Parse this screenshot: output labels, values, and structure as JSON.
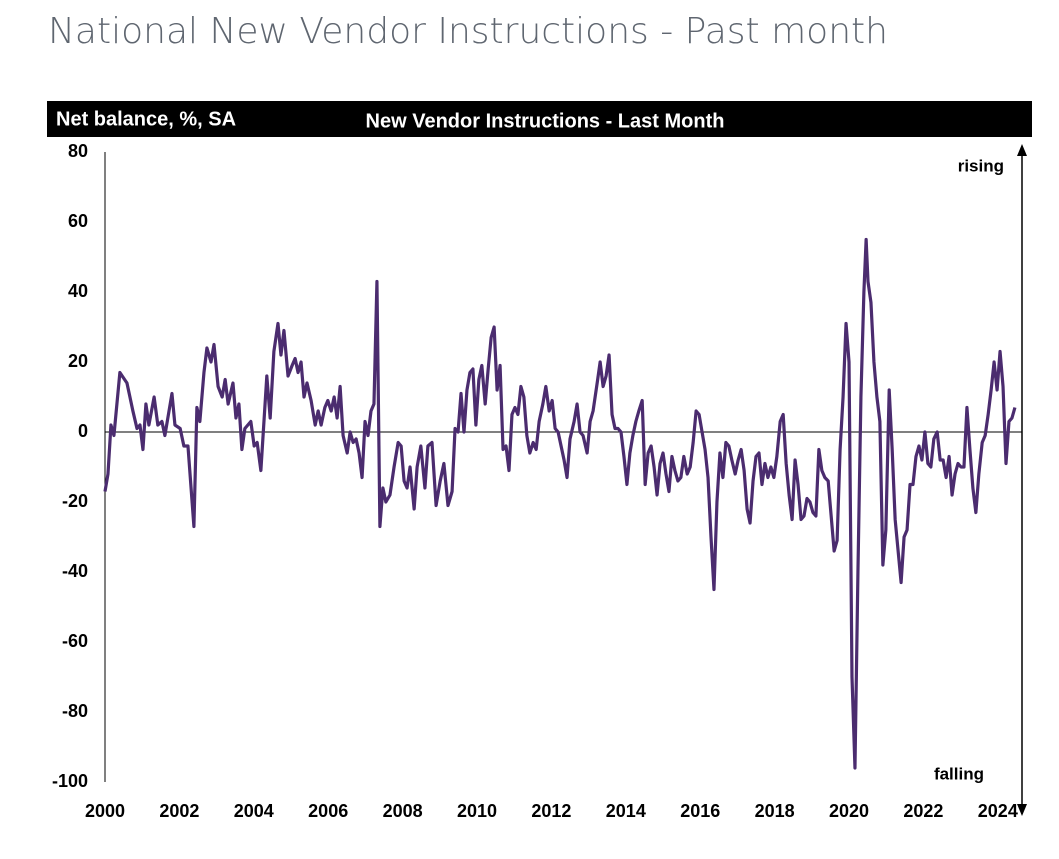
{
  "chart_data": {
    "type": "line",
    "title": "National New Vendor Instructions - Past month",
    "subtitle": "New Vendor Instructions - Last Month",
    "y_label": "Net balance, %, SA",
    "annotations": [
      "rising",
      "falling"
    ],
    "color": "#4b2c6f",
    "xlim": [
      2000,
      2024.65
    ],
    "xticks": [
      2000,
      2002,
      2004,
      2006,
      2008,
      2010,
      2012,
      2014,
      2016,
      2018,
      2020,
      2022,
      2024
    ],
    "ylim": [
      -100,
      80
    ],
    "yticks": [
      -100,
      -80,
      -60,
      -40,
      -20,
      0,
      20,
      40,
      60,
      80
    ],
    "x": [
      2000.0,
      2000.08,
      2000.16,
      2000.24,
      2000.4,
      2000.59,
      2000.75,
      2000.86,
      2000.94,
      2001.02,
      2001.1,
      2001.18,
      2001.32,
      2001.42,
      2001.53,
      2001.61,
      2001.8,
      2001.88,
      2002.02,
      2002.12,
      2002.23,
      2002.39,
      2002.47,
      2002.55,
      2002.66,
      2002.74,
      2002.85,
      2002.93,
      2003.04,
      2003.15,
      2003.23,
      2003.31,
      2003.44,
      2003.52,
      2003.6,
      2003.68,
      2003.76,
      2003.92,
      2004.01,
      2004.09,
      2004.19,
      2004.35,
      2004.44,
      2004.54,
      2004.65,
      2004.73,
      2004.81,
      2004.92,
      2005.03,
      2005.11,
      2005.19,
      2005.27,
      2005.35,
      2005.43,
      2005.54,
      2005.65,
      2005.73,
      2005.81,
      2005.91,
      2005.99,
      2006.08,
      2006.16,
      2006.24,
      2006.32,
      2006.4,
      2006.51,
      2006.59,
      2006.67,
      2006.75,
      2006.83,
      2006.91,
      2006.99,
      2007.07,
      2007.15,
      2007.23,
      2007.31,
      2007.39,
      2007.47,
      2007.55,
      2007.66,
      2007.77,
      2007.88,
      2007.96,
      2008.04,
      2008.12,
      2008.2,
      2008.31,
      2008.39,
      2008.49,
      2008.6,
      2008.68,
      2008.79,
      2008.9,
      2009.01,
      2009.11,
      2009.22,
      2009.33,
      2009.41,
      2009.49,
      2009.57,
      2009.65,
      2009.73,
      2009.81,
      2009.89,
      2009.97,
      2010.05,
      2010.13,
      2010.22,
      2010.3,
      2010.38,
      2010.46,
      2010.54,
      2010.62,
      2010.7,
      2010.78,
      2010.86,
      2010.94,
      2011.02,
      2011.1,
      2011.18,
      2011.26,
      2011.34,
      2011.42,
      2011.51,
      2011.59,
      2011.67,
      2011.77,
      2011.85,
      2011.94,
      2012.02,
      2012.1,
      2012.18,
      2012.26,
      2012.34,
      2012.42,
      2012.5,
      2012.61,
      2012.69,
      2012.77,
      2012.85,
      2012.96,
      2013.04,
      2013.12,
      2013.23,
      2013.31,
      2013.39,
      2013.47,
      2013.55,
      2013.63,
      2013.71,
      2013.79,
      2013.87,
      2013.95,
      2014.03,
      2014.11,
      2014.19,
      2014.27,
      2014.35,
      2014.44,
      2014.52,
      2014.6,
      2014.68,
      2014.76,
      2014.84,
      2014.92,
      2015.0,
      2015.08,
      2015.16,
      2015.24,
      2015.32,
      2015.4,
      2015.48,
      2015.56,
      2015.65,
      2015.73,
      2015.81,
      2015.89,
      2015.97,
      2016.05,
      2016.13,
      2016.21,
      2016.29,
      2016.37,
      2016.45,
      2016.53,
      2016.61,
      2016.69,
      2016.77,
      2016.85,
      2016.94,
      2017.02,
      2017.1,
      2017.18,
      2017.26,
      2017.34,
      2017.42,
      2017.5,
      2017.58,
      2017.66,
      2017.74,
      2017.82,
      2017.9,
      2017.98,
      2018.06,
      2018.15,
      2018.23,
      2018.31,
      2018.39,
      2018.47,
      2018.55,
      2018.63,
      2018.71,
      2018.79,
      2018.87,
      2018.95,
      2019.03,
      2019.11,
      2019.19,
      2019.27,
      2019.35,
      2019.44,
      2019.52,
      2019.6,
      2019.68,
      2019.76,
      2019.84,
      2019.92,
      2020.0,
      2020.08,
      2020.16,
      2020.24,
      2020.32,
      2020.4,
      2020.46,
      2020.51,
      2020.59,
      2020.67,
      2020.75,
      2020.83,
      2020.91,
      2020.99,
      2021.08,
      2021.16,
      2021.24,
      2021.32,
      2021.4,
      2021.48,
      2021.56,
      2021.64,
      2021.72,
      2021.8,
      2021.88,
      2021.96,
      2022.04,
      2022.12,
      2022.2,
      2022.28,
      2022.37,
      2022.45,
      2022.53,
      2022.61,
      2022.69,
      2022.77,
      2022.85,
      2022.93,
      2023.01,
      2023.09,
      2023.17,
      2023.25,
      2023.33,
      2023.41,
      2023.49,
      2023.58,
      2023.66,
      2023.74,
      2023.82,
      2023.9,
      2023.98,
      2024.06,
      2024.14,
      2024.22,
      2024.3,
      2024.38,
      2024.46
    ],
    "values": [
      -17,
      -12,
      2,
      -1,
      17,
      14,
      6,
      1,
      2,
      -5,
      8,
      2,
      10,
      2,
      3,
      -1,
      11,
      2,
      1,
      -4,
      -4,
      -27,
      7,
      3,
      17,
      24,
      20,
      25,
      13,
      10,
      15,
      8,
      14,
      4,
      8,
      -5,
      1,
      3,
      -4,
      -3,
      -11,
      16,
      4,
      23,
      31,
      22,
      29,
      16,
      19,
      21,
      17,
      20,
      10,
      14,
      9,
      2,
      6,
      2,
      7,
      9,
      6,
      10,
      4,
      13,
      -1,
      -6,
      0,
      -3,
      -2,
      -6,
      -13,
      3,
      -1,
      6,
      8,
      43,
      -27,
      -16,
      -20,
      -18,
      -10,
      -3,
      -4,
      -14,
      -16,
      -10,
      -22,
      -10,
      -4,
      -16,
      -4,
      -3,
      -21,
      -14,
      -9,
      -21,
      -17,
      1,
      0,
      11,
      0,
      12,
      17,
      18,
      2,
      15,
      19,
      8,
      18,
      27,
      30,
      12,
      19,
      -5,
      -4,
      -11,
      5,
      7,
      5,
      13,
      10,
      -1,
      -6,
      -3,
      -5,
      3,
      8,
      13,
      6,
      9,
      1,
      0,
      -4,
      -8,
      -13,
      -2,
      3,
      8,
      0,
      -1,
      -6,
      3,
      6,
      14,
      20,
      13,
      16,
      22,
      5,
      1,
      1,
      0,
      -7,
      -15,
      -6,
      -1,
      3,
      6,
      9,
      -15,
      -6,
      -4,
      -10,
      -18,
      -9,
      -6,
      -12,
      -17,
      -7,
      -11,
      -14,
      -13,
      -7,
      -12,
      -10,
      -3,
      6,
      5,
      0,
      -5,
      -13,
      -30,
      -45,
      -20,
      -6,
      -13,
      -3,
      -4,
      -8,
      -12,
      -8,
      -5,
      -11,
      -22,
      -26,
      -14,
      -7,
      -6,
      -15,
      -9,
      -13,
      -10,
      -13,
      -7,
      3,
      5,
      -9,
      -18,
      -25,
      -8,
      -15,
      -25,
      -24,
      -19,
      -20,
      -23,
      -24,
      -5,
      -11,
      -13,
      -14,
      -24,
      -34,
      -31,
      -5,
      10,
      31,
      20,
      -70,
      -96,
      -40,
      10,
      40,
      55,
      43,
      37,
      20,
      10,
      3,
      -38,
      -28,
      12,
      -5,
      -25,
      -34,
      -43,
      -30,
      -28,
      -15,
      -15,
      -7,
      -4,
      -8,
      0,
      -9,
      -10,
      -2,
      0,
      -8,
      -8,
      -13,
      -7,
      -18,
      -12,
      -9,
      -10,
      -10,
      7,
      -5,
      -16,
      -23,
      -12,
      -3,
      -1,
      5,
      12,
      20,
      12,
      23,
      13,
      -9,
      3,
      4,
      7
    ]
  }
}
